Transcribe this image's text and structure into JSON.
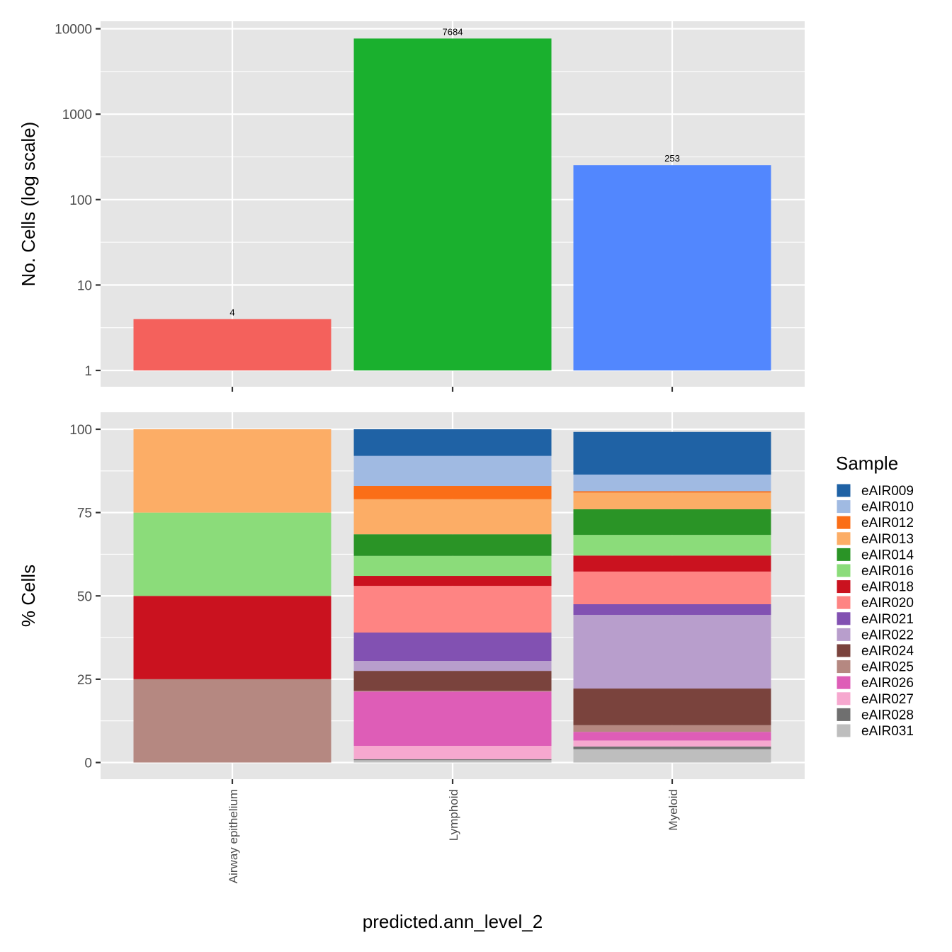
{
  "chart_data": [
    {
      "type": "bar",
      "panel": "top",
      "scale": "log10",
      "categories": [
        "Airway epithelium",
        "Lymphoid",
        "Myeloid"
      ],
      "values": [
        4,
        7684,
        253
      ],
      "value_labels": [
        "4",
        "7684",
        "253"
      ],
      "colors": [
        "#F4615C",
        "#1AB02E",
        "#5287FE"
      ],
      "ylabel": "No. Cells (log scale)",
      "yticks": [
        1,
        10,
        100,
        1000,
        10000
      ],
      "ytick_labels": [
        "1",
        "10",
        "100",
        "1000",
        "10000"
      ],
      "ylim": [
        1,
        10000
      ]
    },
    {
      "type": "bar",
      "panel": "bottom",
      "stacked": true,
      "categories": [
        "Airway epithelium",
        "Lymphoid",
        "Myeloid"
      ],
      "ylabel": "% Cells",
      "xlabel": "predicted.ann_level_2",
      "yticks": [
        0,
        25,
        50,
        75,
        100
      ],
      "ytick_labels": [
        "0",
        "25",
        "50",
        "75",
        "100"
      ],
      "ylim": [
        0,
        100
      ],
      "legend_title": "Sample",
      "legend_position": "right",
      "series": [
        {
          "name": "eAIR009",
          "color": "#1F62A5",
          "values": [
            0,
            8.0,
            12.8
          ]
        },
        {
          "name": "eAIR010",
          "color": "#A0BAE2",
          "values": [
            0,
            9.0,
            5.0
          ]
        },
        {
          "name": "eAIR012",
          "color": "#FB6E17",
          "values": [
            0,
            4.0,
            0.4
          ]
        },
        {
          "name": "eAIR013",
          "color": "#FCAD66",
          "values": [
            25,
            10.5,
            5.0
          ]
        },
        {
          "name": "eAIR014",
          "color": "#2A9426",
          "values": [
            0,
            6.5,
            7.7
          ]
        },
        {
          "name": "eAIR016",
          "color": "#8BDC7A",
          "values": [
            25,
            6.0,
            6.2
          ]
        },
        {
          "name": "eAIR018",
          "color": "#CA121F",
          "values": [
            25,
            3.0,
            4.8
          ]
        },
        {
          "name": "eAIR020",
          "color": "#FE8483",
          "values": [
            0,
            14.0,
            9.8
          ]
        },
        {
          "name": "eAIR021",
          "color": "#8251B2",
          "values": [
            0,
            8.5,
            3.2
          ]
        },
        {
          "name": "eAIR022",
          "color": "#B89ECC",
          "values": [
            0,
            3.0,
            22.1
          ]
        },
        {
          "name": "eAIR024",
          "color": "#7A433D",
          "values": [
            0,
            6.0,
            11.0
          ]
        },
        {
          "name": "eAIR025",
          "color": "#B58881",
          "values": [
            25,
            0.2,
            2.0
          ]
        },
        {
          "name": "eAIR026",
          "color": "#DE5DB7",
          "values": [
            0,
            16.3,
            2.6
          ]
        },
        {
          "name": "eAIR027",
          "color": "#F6A8CF",
          "values": [
            0,
            4.0,
            1.8
          ]
        },
        {
          "name": "eAIR028",
          "color": "#6F6F6F",
          "values": [
            0,
            0.3,
            0.8
          ]
        },
        {
          "name": "eAIR031",
          "color": "#BEBEBE",
          "values": [
            0,
            0.7,
            4.0
          ]
        }
      ]
    }
  ]
}
